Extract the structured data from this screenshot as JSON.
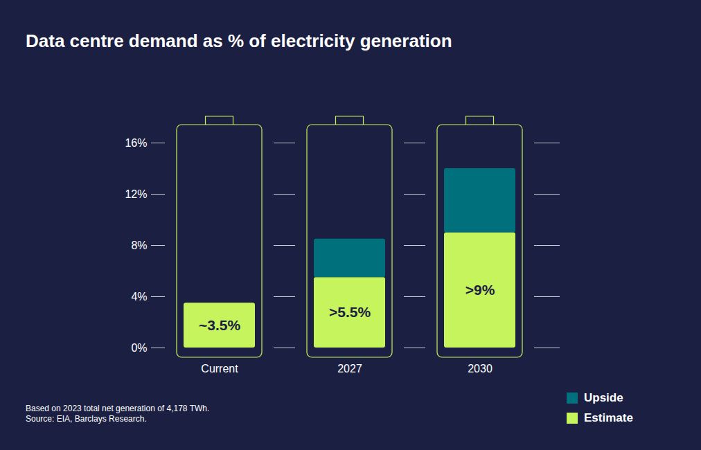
{
  "chart_data": {
    "type": "bar",
    "title": "Data centre demand as % of electricity generation",
    "caption": [
      "Based on 2023 total net generation of 4,178 TWh.",
      "Source: EIA, Barclays Research."
    ],
    "categories": [
      "Current",
      "2027",
      "2030"
    ],
    "series": [
      {
        "name": "Estimate",
        "color": "#c6f45c",
        "values": [
          3.5,
          5.5,
          9
        ],
        "value_labels": [
          "~3.5%",
          ">5.5%",
          ">9%"
        ]
      },
      {
        "name": "Upside",
        "color": "#00717c",
        "values": [
          0,
          3,
          5
        ]
      }
    ],
    "stacked": true,
    "data_labels": true,
    "ylim": [
      0,
      16
    ],
    "yticks": [
      {
        "value": 0,
        "label": "0%"
      },
      {
        "value": 4,
        "label": "4%"
      },
      {
        "value": 8,
        "label": "8%"
      },
      {
        "value": 12,
        "label": "12%"
      },
      {
        "value": 16,
        "label": "16%"
      }
    ],
    "grid": true,
    "legend": "bottom-right"
  }
}
